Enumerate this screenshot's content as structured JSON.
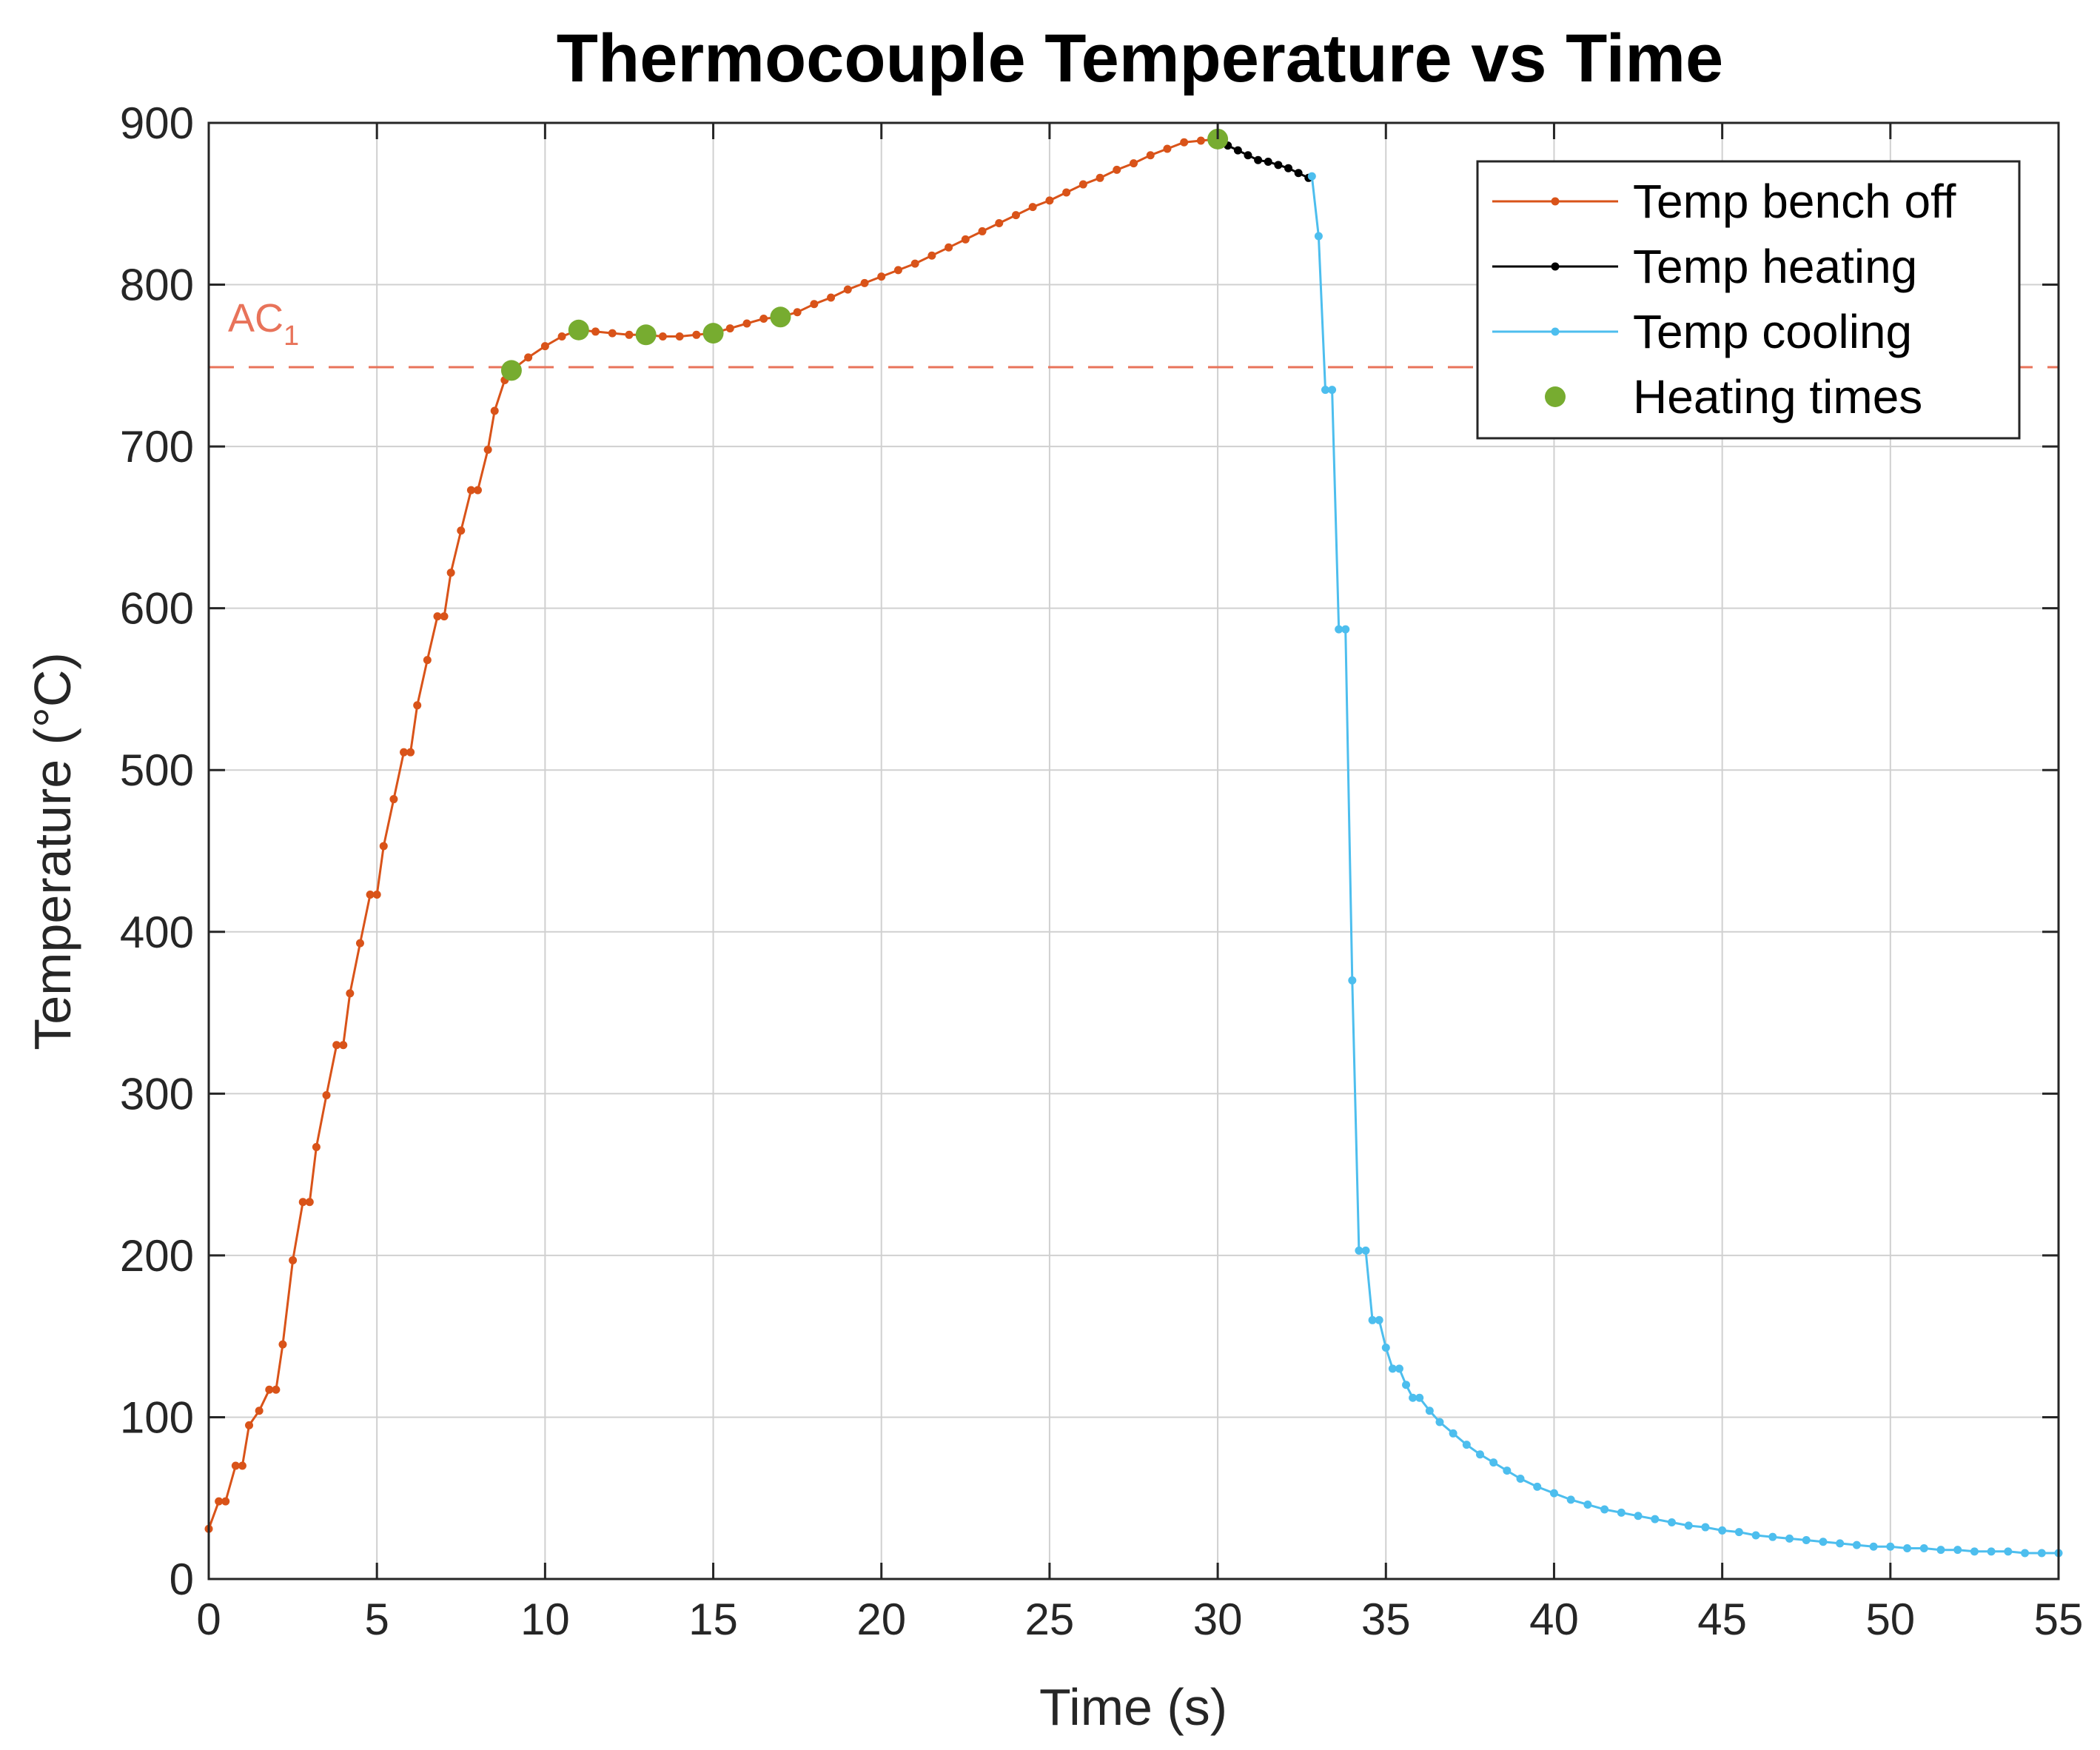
{
  "chart_data": {
    "type": "line",
    "title": "Thermocouple Temperature vs Time",
    "xlabel": "Time (s)",
    "ylabel": "Temperature (°C)",
    "xlim": [
      0,
      55
    ],
    "ylim": [
      0,
      900
    ],
    "xticks": [
      0,
      5,
      10,
      15,
      20,
      25,
      30,
      35,
      40,
      45,
      50,
      55
    ],
    "yticks": [
      0,
      100,
      200,
      300,
      400,
      500,
      600,
      700,
      800,
      900
    ],
    "grid": true,
    "legend_position": "top-right",
    "reference_line": {
      "label_main": "AC",
      "label_sub": "1",
      "y": 749,
      "color": "#E8735A",
      "style": "dashed"
    },
    "series": [
      {
        "name": "Temp bench off",
        "color": "#D95319",
        "marker": "dot",
        "x": [
          0,
          0.3,
          0.5,
          0.8,
          1.0,
          1.2,
          1.5,
          1.8,
          2.0,
          2.2,
          2.5,
          2.8,
          3.0,
          3.2,
          3.5,
          3.8,
          4.0,
          4.2,
          4.5,
          4.8,
          5.0,
          5.2,
          5.5,
          5.8,
          6.0,
          6.2,
          6.5,
          6.8,
          7.0,
          7.2,
          7.5,
          7.8,
          8.0,
          8.3,
          8.5,
          8.8,
          9.0,
          9.5,
          10.0,
          10.5,
          11.0,
          11.5,
          12.0,
          12.5,
          13.0,
          13.5,
          14.0,
          14.5,
          15.0,
          15.5,
          16.0,
          16.5,
          17.0,
          17.5,
          18.0,
          18.5,
          19.0,
          19.5,
          20.0,
          20.5,
          21.0,
          21.5,
          22.0,
          22.5,
          23.0,
          23.5,
          24.0,
          24.5,
          25.0,
          25.5,
          26.0,
          26.5,
          27.0,
          27.5,
          28.0,
          28.5,
          29.0,
          29.5,
          30.0
        ],
        "y": [
          31,
          48,
          48,
          70,
          70,
          95,
          104,
          117,
          117,
          145,
          197,
          233,
          233,
          267,
          299,
          330,
          330,
          362,
          393,
          423,
          423,
          453,
          482,
          511,
          511,
          540,
          568,
          595,
          595,
          622,
          648,
          673,
          673,
          698,
          722,
          741,
          747,
          755,
          762,
          768,
          772,
          771,
          770,
          769,
          769,
          768,
          768,
          769,
          770,
          773,
          776,
          779,
          780,
          783,
          788,
          792,
          797,
          801,
          805,
          809,
          813,
          818,
          823,
          828,
          833,
          838,
          843,
          848,
          852,
          857,
          862,
          866,
          871,
          875,
          880,
          884,
          888,
          889,
          890
        ]
      },
      {
        "name": "Temp heating",
        "color": "#000000",
        "marker": "dot",
        "x": [
          30.0,
          30.3,
          30.6,
          30.9,
          31.2,
          31.5,
          31.8,
          32.1,
          32.4,
          32.7
        ],
        "y": [
          890,
          886,
          883,
          880,
          877,
          876,
          874,
          872,
          869,
          866
        ]
      },
      {
        "name": "Temp cooling",
        "color": "#4DBEEE",
        "marker": "dot",
        "x": [
          32.8,
          33.0,
          33.2,
          33.4,
          33.6,
          33.8,
          34.0,
          34.2,
          34.4,
          34.6,
          34.8,
          35.0,
          35.2,
          35.4,
          35.6,
          35.8,
          36.0,
          36.3,
          36.6,
          37.0,
          37.4,
          37.8,
          38.2,
          38.6,
          39.0,
          39.5,
          40.0,
          40.5,
          41.0,
          41.5,
          42.0,
          42.5,
          43.0,
          43.5,
          44.0,
          44.5,
          45.0,
          45.5,
          46.0,
          46.5,
          47.0,
          47.5,
          48.0,
          48.5,
          49.0,
          49.5,
          50.0,
          50.5,
          51.0,
          51.5,
          52.0,
          52.5,
          53.0,
          53.5,
          54.0,
          54.5,
          55.0
        ],
        "y": [
          867,
          830,
          735,
          735,
          587,
          587,
          370,
          203,
          203,
          160,
          160,
          143,
          130,
          130,
          120,
          112,
          112,
          104,
          97,
          90,
          83,
          77,
          72,
          67,
          62,
          57,
          53,
          49,
          46,
          43,
          41,
          39,
          37,
          35,
          33,
          32,
          30,
          29,
          27,
          26,
          25,
          24,
          23,
          22,
          21,
          20,
          20,
          19,
          19,
          18,
          18,
          17,
          17,
          17,
          16,
          16,
          16
        ]
      },
      {
        "name": "Heating times",
        "color": "#77AC30",
        "marker": "large-dot",
        "x": [
          9,
          11,
          13,
          15,
          17,
          30
        ],
        "y": [
          747,
          772,
          769,
          770,
          780,
          890
        ]
      }
    ]
  }
}
